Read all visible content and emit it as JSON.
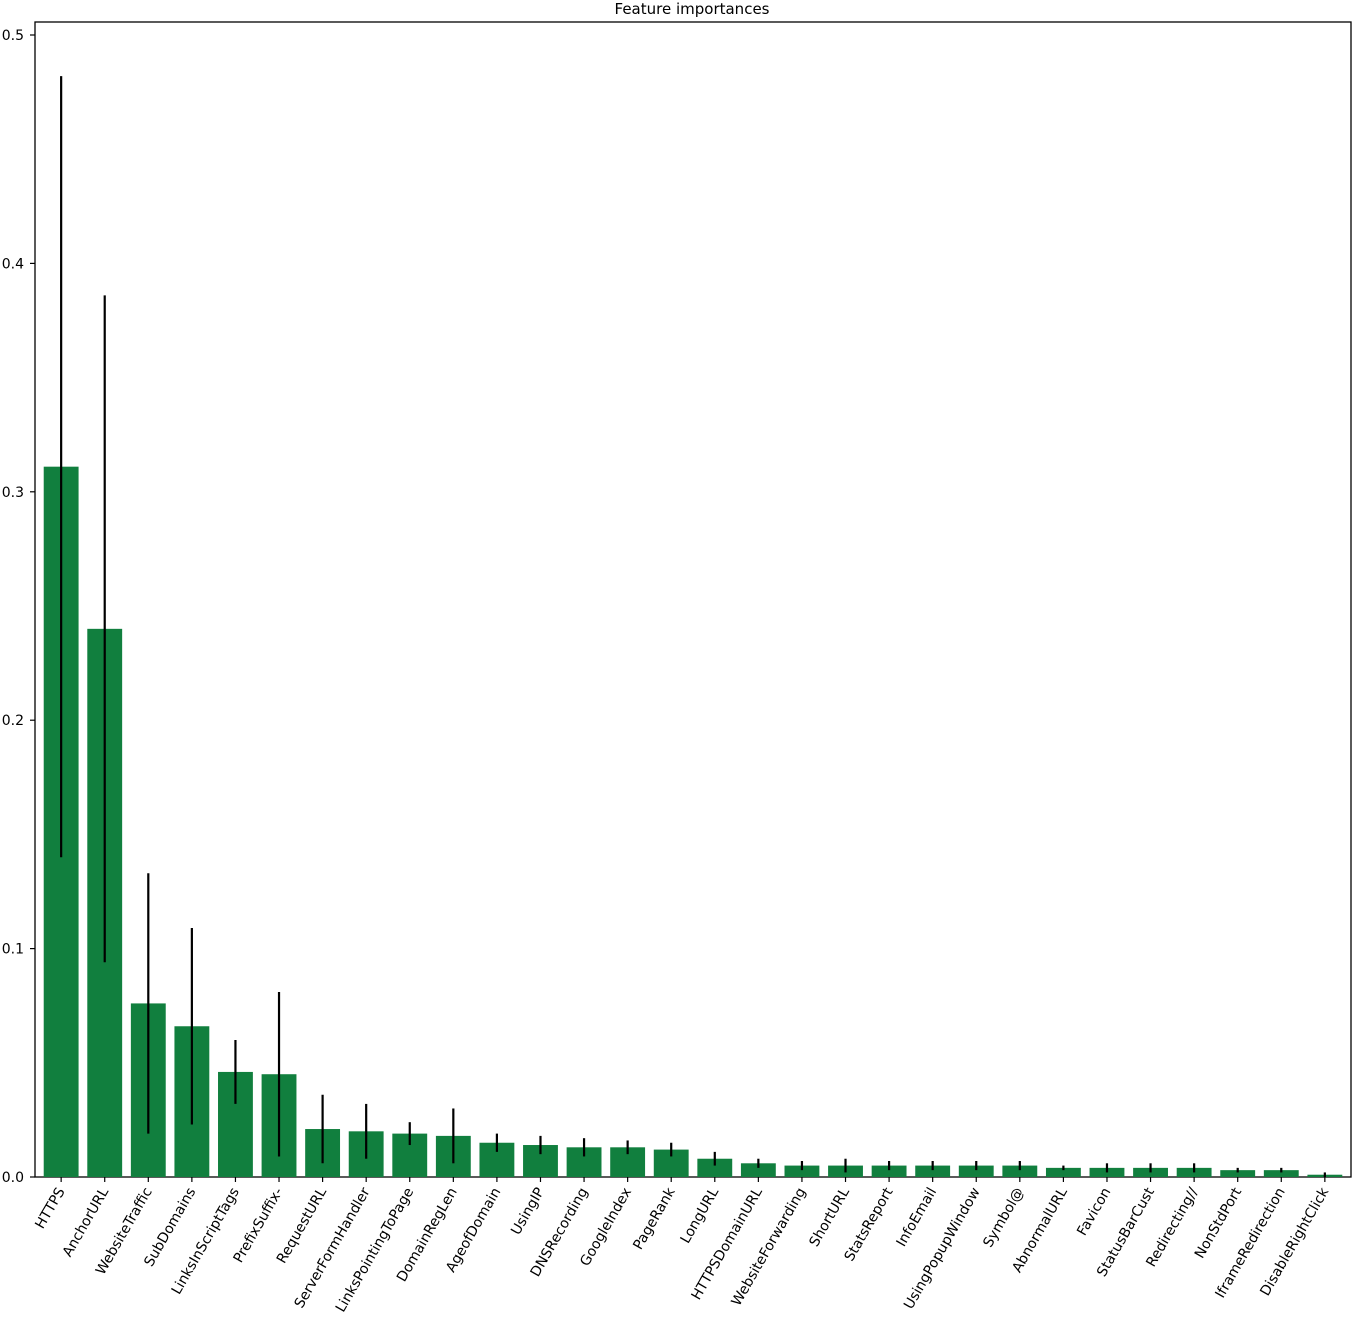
{
  "colors": {
    "bar": "#117f3e",
    "error": "#000000",
    "axis": "#000000"
  },
  "chart_data": {
    "type": "bar",
    "title": "Feature importances",
    "xlabel": "",
    "ylabel": "",
    "ylim": [
      0,
      0.5
    ],
    "yticks": [
      0.0,
      0.1,
      0.2,
      0.3,
      0.4,
      0.5
    ],
    "ytick_labels": [
      "0.0",
      "0.1",
      "0.2",
      "0.3",
      "0.4",
      "0.5"
    ],
    "grid": false,
    "categories": [
      "HTTPS",
      "AnchorURL",
      "WebsiteTraffic",
      "SubDomains",
      "LinksInScriptTags",
      "PrefixSuffix-",
      "RequestURL",
      "ServerFormHandler",
      "LinksPointingToPage",
      "DomainRegLen",
      "AgeofDomain",
      "UsingIP",
      "DNSRecording",
      "GoogleIndex",
      "PageRank",
      "LongURL",
      "HTTPSDomainURL",
      "WebsiteForwarding",
      "ShortURL",
      "StatsReport",
      "InfoEmail",
      "UsingPopupWindow",
      "Symbol@",
      "AbnormalURL",
      "Favicon",
      "StatusBarCust",
      "Redirecting//",
      "NonStdPort",
      "IframeRedirection",
      "DisableRightClick"
    ],
    "values": [
      0.311,
      0.24,
      0.076,
      0.066,
      0.046,
      0.045,
      0.021,
      0.02,
      0.019,
      0.018,
      0.015,
      0.014,
      0.013,
      0.013,
      0.012,
      0.008,
      0.006,
      0.005,
      0.005,
      0.005,
      0.005,
      0.005,
      0.005,
      0.004,
      0.004,
      0.004,
      0.004,
      0.003,
      0.003,
      0.001
    ],
    "errors": [
      0.171,
      0.146,
      0.057,
      0.043,
      0.014,
      0.036,
      0.015,
      0.012,
      0.005,
      0.012,
      0.004,
      0.004,
      0.004,
      0.003,
      0.003,
      0.003,
      0.002,
      0.002,
      0.003,
      0.002,
      0.002,
      0.002,
      0.002,
      0.001,
      0.002,
      0.002,
      0.002,
      0.001,
      0.001,
      0.001
    ]
  }
}
